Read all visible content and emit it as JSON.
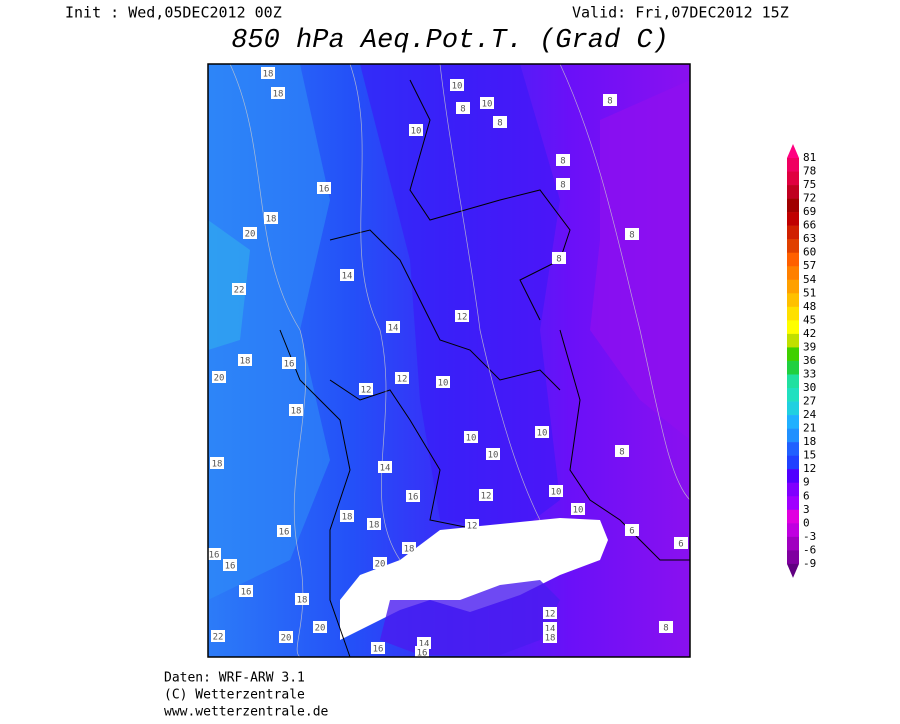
{
  "header": {
    "init": "Init : Wed,05DEC2012 00Z",
    "valid": "Valid: Fri,07DEC2012 15Z",
    "title": "850 hPa Aeq.Pot.T. (Grad C)"
  },
  "colorbar": {
    "levels": [
      81,
      78,
      75,
      72,
      69,
      66,
      63,
      60,
      57,
      54,
      51,
      48,
      45,
      42,
      39,
      36,
      33,
      30,
      27,
      24,
      21,
      18,
      15,
      12,
      9,
      6,
      3,
      0,
      -3,
      -6,
      -9
    ],
    "colors": [
      "#f00060",
      "#e00040",
      "#c00020",
      "#a00000",
      "#c00000",
      "#d02000",
      "#e04000",
      "#ff6000",
      "#ff8000",
      "#ffa000",
      "#ffc000",
      "#ffe000",
      "#ffff00",
      "#c0e000",
      "#40d000",
      "#20d040",
      "#20e0a0",
      "#20e0c0",
      "#20d0e0",
      "#20b0ff",
      "#2090ff",
      "#2060ff",
      "#2040ff",
      "#5000ff",
      "#8000ff",
      "#a000ff",
      "#e000e0",
      "#c000e0",
      "#a000c0",
      "#8000a0"
    ],
    "top_color": "#ff0080",
    "bottom_color": "#600080"
  },
  "map": {
    "contour_labels": [
      18,
      18,
      10,
      10,
      8,
      8,
      8,
      10,
      8,
      8,
      16,
      18,
      20,
      8,
      8,
      14,
      22,
      12,
      14,
      18,
      16,
      20,
      12,
      12,
      10,
      18,
      10,
      10,
      10,
      8,
      18,
      14,
      10,
      16,
      12,
      18,
      18,
      16,
      12,
      10,
      6,
      16,
      16,
      20,
      18,
      16,
      18,
      12,
      14,
      18,
      22,
      20,
      20,
      14,
      16,
      16,
      8,
      6
    ]
  },
  "footer": {
    "lines": [
      "Daten: WRF-ARW 3.1",
      "(C) Wetterzentrale",
      "www.wetterzentrale.de"
    ]
  }
}
